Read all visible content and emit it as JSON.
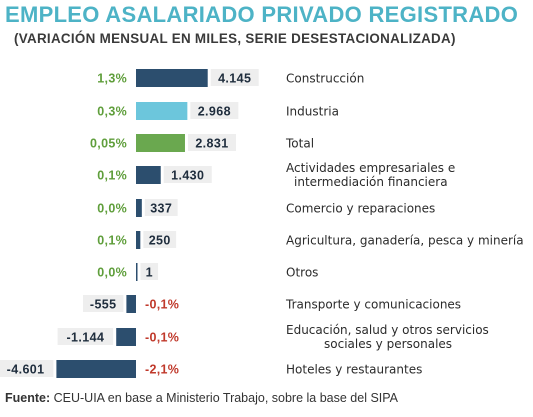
{
  "header": {
    "title": "EMPLEO ASALARIADO PRIVADO REGISTRADO",
    "subtitle": "(VARIACIÓN MENSUAL EN MILES, SERIE DESESTACIONALIZADA)"
  },
  "colors": {
    "title": "#4db3c6",
    "bar_default": "#2c4e6e",
    "bar_industria": "#6cc6dc",
    "bar_total": "#6aa84f",
    "pct_positive": "#5f9e3b",
    "pct_negative": "#c0392b",
    "value_label_bg": "#eeeeee"
  },
  "chart_data": {
    "type": "bar",
    "orientation": "horizontal",
    "title": "EMPLEO ASALARIADO PRIVADO REGISTRADO",
    "subtitle": "(VARIACIÓN MENSUAL EN MILES, SERIE DESESTACIONALIZADA)",
    "categories": [
      [
        "Construcción"
      ],
      [
        "Industria"
      ],
      [
        "Total"
      ],
      [
        "Actividades empresariales e",
        "intermediación financiera"
      ],
      [
        "Comercio y reparaciones"
      ],
      [
        "Agricultura, ganadería, pesca y minería"
      ],
      [
        "Otros"
      ],
      [
        "Transporte y comunicaciones"
      ],
      [
        "Educación, salud y otros servicios",
        "sociales y personales"
      ],
      [
        "Hoteles y restaurantes"
      ]
    ],
    "values": [
      4145,
      2968,
      2831,
      1430,
      337,
      250,
      1,
      -555,
      -1144,
      -4601
    ],
    "value_labels": [
      "4.145",
      "2.968",
      "2.831",
      "1.430",
      "337",
      "250",
      "1",
      "-555",
      "-1.144",
      "-4.601"
    ],
    "pct_labels": [
      "1,3%",
      "0,3%",
      "0,05%",
      "0,1%",
      "0,0%",
      "0,1%",
      "0,0%",
      "-0,1%",
      "-0,1%",
      "-2,1%"
    ],
    "bar_colors": [
      "#2c4e6e",
      "#6cc6dc",
      "#6aa84f",
      "#2c4e6e",
      "#2c4e6e",
      "#2c4e6e",
      "#2c4e6e",
      "#2c4e6e",
      "#2c4e6e",
      "#2c4e6e"
    ],
    "unit": "miles",
    "xlabel": "",
    "ylabel": "",
    "grid": false,
    "legend": "none"
  },
  "footer": {
    "source_label": "Fuente:",
    "source_text": " CEU-UIA en base a Ministerio Trabajo, sobre la base del SIPA"
  }
}
